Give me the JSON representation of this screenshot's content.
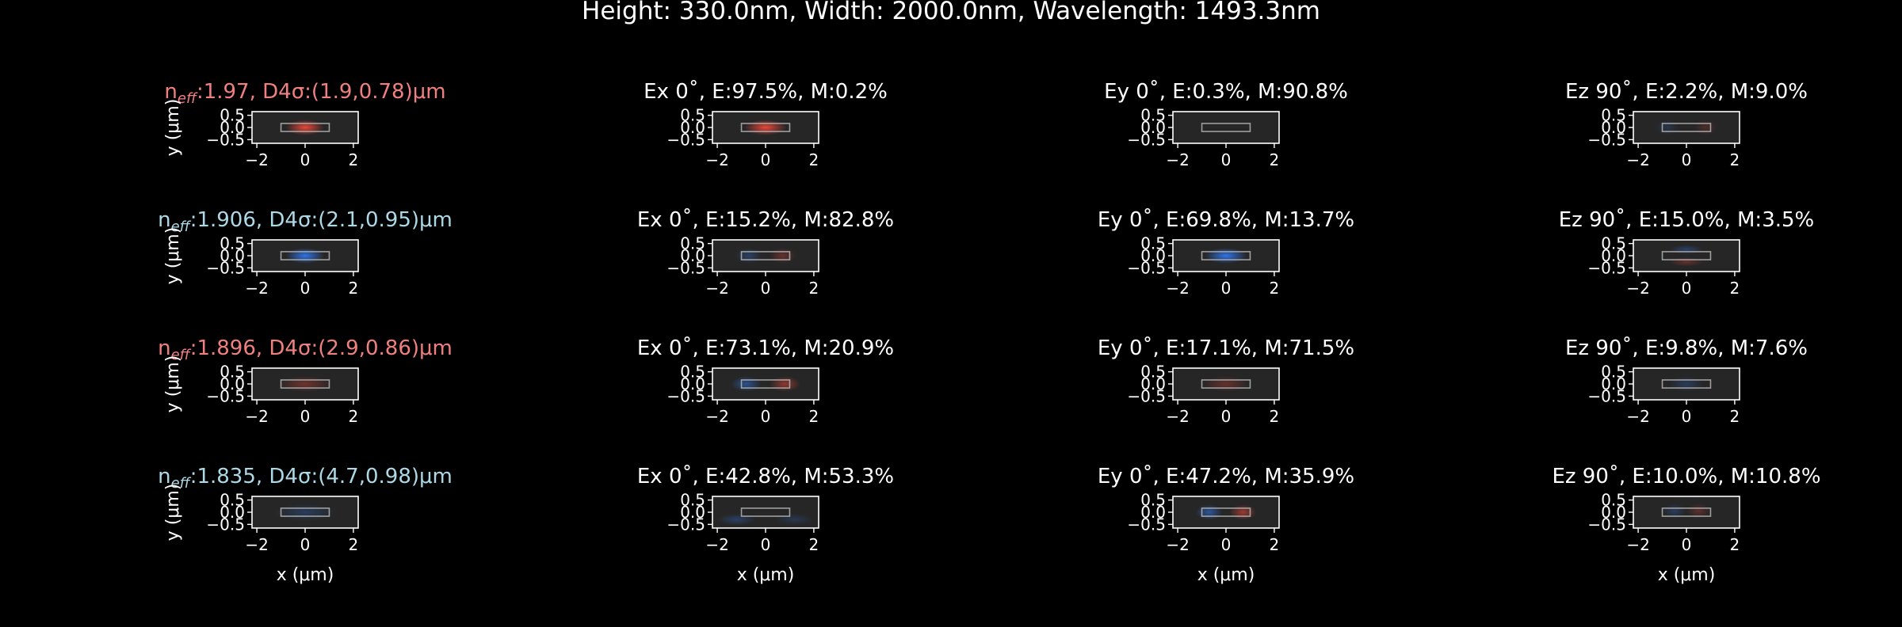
{
  "figure": {
    "title": "Height: 330.0nm, Width: 2000.0nm, Wavelength: 1493.3nm",
    "colors": {
      "background": "#000000",
      "text": "#ffffff",
      "panel": "#262626",
      "positive": "#ff4a3a",
      "negative": "#2f7dff",
      "label_red": "#f08080",
      "label_blue": "#add8e6"
    }
  },
  "chart_data": {
    "type": "heatmap",
    "title": "Height: 330.0nm, Width: 2000.0nm, Wavelength: 1493.3nm",
    "xlabel": "x (μm)",
    "ylabel": "y (μm)",
    "xlim": [
      -2.2,
      2.2
    ],
    "ylim": [
      -0.65,
      0.65
    ],
    "xticks": [
      "−2",
      "0",
      "2"
    ],
    "yticks": [
      "0.5",
      "0.0",
      "−0.5"
    ],
    "waveguide_core": {
      "x": [
        -1.0,
        1.0
      ],
      "y": [
        -0.165,
        0.165
      ]
    },
    "modes": [
      {
        "label_prefix": "n",
        "label_sub": "eff",
        "label_rest": ":1.97, D4σ:(1.9,0.78)μm",
        "label_color": "red",
        "intensity": {
          "peak_x": 0.0,
          "peak_y": 0.0,
          "sx": 0.5,
          "sy": 0.2,
          "sign": 1,
          "strength": 0.9
        },
        "components": [
          {
            "title": "Ex 0˚, E:97.5%, M:0.2%",
            "lobes": [
              {
                "x": 0.0,
                "y": 0.0,
                "sx": 0.55,
                "sy": 0.2,
                "sign": 1,
                "a": 0.9
              }
            ]
          },
          {
            "title": "Ey 0˚, E:0.3%, M:90.8%",
            "lobes": []
          },
          {
            "title": "Ez 90˚, E:2.2%, M:9.0%",
            "lobes": [
              {
                "x": -0.8,
                "y": 0.0,
                "sx": 0.3,
                "sy": 0.2,
                "sign": -1,
                "a": 0.18
              },
              {
                "x": 0.8,
                "y": 0.0,
                "sx": 0.3,
                "sy": 0.2,
                "sign": 1,
                "a": 0.18
              }
            ]
          }
        ]
      },
      {
        "label_prefix": "n",
        "label_sub": "eff",
        "label_rest": ":1.906, D4σ:(2.1,0.95)μm",
        "label_color": "blue",
        "intensity": {
          "peak_x": 0.0,
          "peak_y": 0.0,
          "sx": 0.5,
          "sy": 0.2,
          "sign": -1,
          "strength": 0.9
        },
        "components": [
          {
            "title": "Ex 0˚, E:15.2%, M:82.8%",
            "lobes": [
              {
                "x": -0.7,
                "y": 0.0,
                "sx": 0.35,
                "sy": 0.2,
                "sign": -1,
                "a": 0.3
              },
              {
                "x": 0.7,
                "y": 0.0,
                "sx": 0.35,
                "sy": 0.2,
                "sign": 1,
                "a": 0.3
              }
            ]
          },
          {
            "title": "Ey 0˚, E:69.8%, M:13.7%",
            "lobes": [
              {
                "x": 0.0,
                "y": 0.0,
                "sx": 0.55,
                "sy": 0.2,
                "sign": -1,
                "a": 0.9
              }
            ]
          },
          {
            "title": "Ez 90˚, E:15.0%, M:3.5%",
            "lobes": [
              {
                "x": 0.0,
                "y": 0.25,
                "sx": 0.45,
                "sy": 0.12,
                "sign": -1,
                "a": 0.3
              },
              {
                "x": 0.0,
                "y": -0.25,
                "sx": 0.45,
                "sy": 0.12,
                "sign": 1,
                "a": 0.3
              }
            ]
          }
        ]
      },
      {
        "label_prefix": "n",
        "label_sub": "eff",
        "label_rest": ":1.896, D4σ:(2.9,0.86)μm",
        "label_color": "red",
        "intensity": {
          "peak_x": 0.0,
          "peak_y": 0.0,
          "sx": 0.7,
          "sy": 0.2,
          "sign": 1,
          "strength": 0.35
        },
        "components": [
          {
            "title": "Ex 0˚, E:73.1%, M:20.9%",
            "lobes": [
              {
                "x": -0.8,
                "y": 0.0,
                "sx": 0.4,
                "sy": 0.2,
                "sign": -1,
                "a": 0.5
              },
              {
                "x": 0.8,
                "y": 0.0,
                "sx": 0.4,
                "sy": 0.2,
                "sign": 1,
                "a": 0.5
              }
            ]
          },
          {
            "title": "Ey 0˚, E:17.1%, M:71.5%",
            "lobes": [
              {
                "x": 0.0,
                "y": 0.0,
                "sx": 0.6,
                "sy": 0.2,
                "sign": 1,
                "a": 0.3
              }
            ]
          },
          {
            "title": "Ez 90˚, E:9.8%, M:7.6%",
            "lobes": [
              {
                "x": 0.0,
                "y": 0.0,
                "sx": 0.45,
                "sy": 0.2,
                "sign": -1,
                "a": 0.25
              }
            ]
          }
        ]
      },
      {
        "label_prefix": "n",
        "label_sub": "eff",
        "label_rest": ":1.835, D4σ:(4.7,0.98)μm",
        "label_color": "blue",
        "intensity": {
          "peak_x": 0.0,
          "peak_y": 0.0,
          "sx": 0.8,
          "sy": 0.22,
          "sign": -1,
          "strength": 0.25
        },
        "components": [
          {
            "title": "Ex 0˚, E:42.8%, M:53.3%",
            "lobes": [
              {
                "x": -1.2,
                "y": -0.3,
                "sx": 0.5,
                "sy": 0.15,
                "sign": -1,
                "a": 0.3
              },
              {
                "x": 1.2,
                "y": -0.3,
                "sx": 0.5,
                "sy": 0.15,
                "sign": -1,
                "a": 0.2
              }
            ]
          },
          {
            "title": "Ey 0˚, E:47.2%, M:35.9%",
            "lobes": [
              {
                "x": -0.7,
                "y": 0.0,
                "sx": 0.35,
                "sy": 0.2,
                "sign": -1,
                "a": 0.55
              },
              {
                "x": 0.7,
                "y": 0.0,
                "sx": 0.35,
                "sy": 0.2,
                "sign": 1,
                "a": 0.55
              }
            ]
          },
          {
            "title": "Ez 90˚, E:10.0%, M:10.8%",
            "lobes": [
              {
                "x": -0.5,
                "y": 0.05,
                "sx": 0.3,
                "sy": 0.2,
                "sign": -1,
                "a": 0.25
              },
              {
                "x": 0.5,
                "y": 0.05,
                "sx": 0.3,
                "sy": 0.2,
                "sign": 1,
                "a": 0.25
              }
            ]
          }
        ]
      }
    ]
  }
}
